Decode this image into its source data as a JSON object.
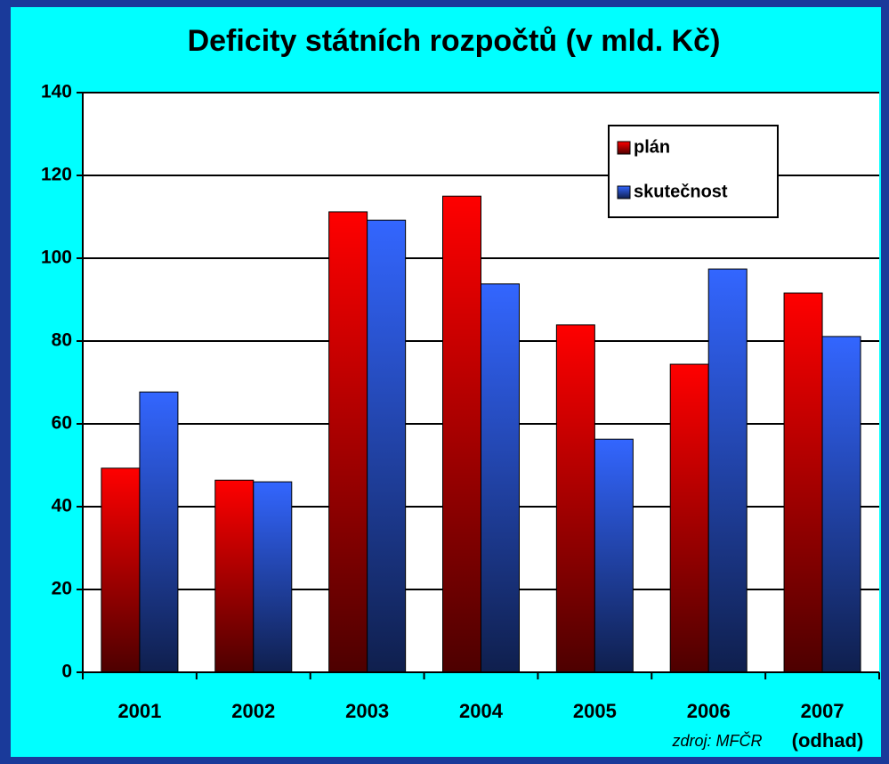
{
  "chart_data": {
    "type": "bar",
    "title": "Deficity státních rozpočtů (v mld. Kč)",
    "categories": [
      "2001",
      "2002",
      "2003",
      "2004",
      "2005",
      "2006",
      "2007"
    ],
    "series": [
      {
        "name": "plán",
        "color": "#ff0000",
        "values": [
          49.3,
          46.4,
          111.2,
          115.0,
          83.9,
          74.4,
          91.6
        ]
      },
      {
        "name": "skutečnost",
        "color": "#3366ff",
        "values": [
          67.7,
          46.0,
          109.2,
          93.8,
          56.3,
          97.4,
          81.1
        ]
      }
    ],
    "ylim": [
      0,
      140
    ],
    "yticks": [
      0,
      20,
      40,
      60,
      80,
      100,
      120,
      140
    ],
    "grid": true,
    "legend": "upper right",
    "annotations": [
      "(odhad)",
      "zdroj: MFČR"
    ]
  }
}
